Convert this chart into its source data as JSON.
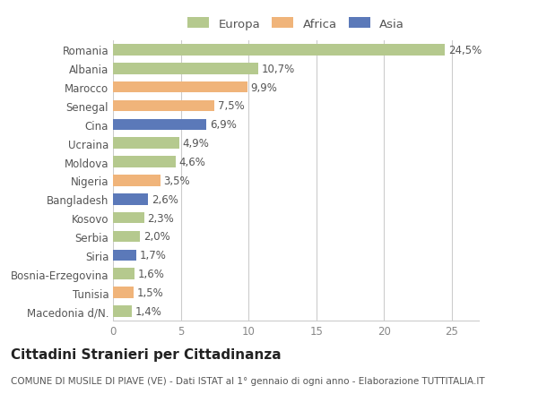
{
  "categories": [
    "Macedonia d/N.",
    "Tunisia",
    "Bosnia-Erzegovina",
    "Siria",
    "Serbia",
    "Kosovo",
    "Bangladesh",
    "Nigeria",
    "Moldova",
    "Ucraina",
    "Cina",
    "Senegal",
    "Marocco",
    "Albania",
    "Romania"
  ],
  "values": [
    1.4,
    1.5,
    1.6,
    1.7,
    2.0,
    2.3,
    2.6,
    3.5,
    4.6,
    4.9,
    6.9,
    7.5,
    9.9,
    10.7,
    24.5
  ],
  "labels": [
    "1,4%",
    "1,5%",
    "1,6%",
    "1,7%",
    "2,0%",
    "2,3%",
    "2,6%",
    "3,5%",
    "4,6%",
    "4,9%",
    "6,9%",
    "7,5%",
    "9,9%",
    "10,7%",
    "24,5%"
  ],
  "continents": [
    "Europa",
    "Africa",
    "Europa",
    "Asia",
    "Europa",
    "Europa",
    "Asia",
    "Africa",
    "Europa",
    "Europa",
    "Asia",
    "Africa",
    "Africa",
    "Europa",
    "Europa"
  ],
  "colors": {
    "Europa": "#b5c98e",
    "Africa": "#f0b47a",
    "Asia": "#5b79b9"
  },
  "legend_entries": [
    "Europa",
    "Africa",
    "Asia"
  ],
  "legend_colors": [
    "#b5c98e",
    "#f0b47a",
    "#5b79b9"
  ],
  "title": "Cittadini Stranieri per Cittadinanza",
  "subtitle": "COMUNE DI MUSILE DI PIAVE (VE) - Dati ISTAT al 1° gennaio di ogni anno - Elaborazione TUTTITALIA.IT",
  "xlim": [
    0,
    27
  ],
  "xticks": [
    0,
    5,
    10,
    15,
    20,
    25
  ],
  "background_color": "#ffffff",
  "bar_height": 0.6,
  "grid_color": "#cccccc",
  "label_fontsize": 8.5,
  "tick_fontsize": 8.5,
  "title_fontsize": 11,
  "subtitle_fontsize": 7.5
}
